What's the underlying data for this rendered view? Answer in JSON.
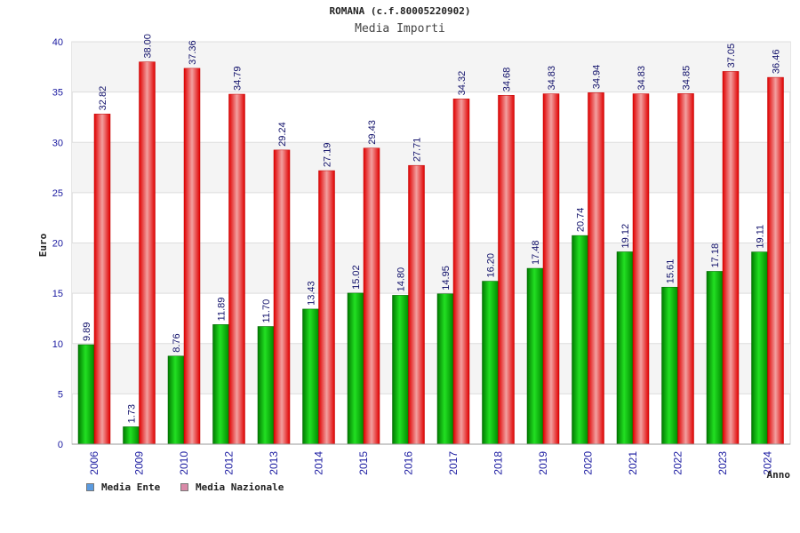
{
  "header": {
    "title": "ROMANA (c.f.80005220902)",
    "subtitle": "Media Importi"
  },
  "legend": {
    "items": [
      {
        "label": "Media Ente",
        "color": "#5b9be0"
      },
      {
        "label": "Media Nazionale",
        "color": "#d98aa8"
      }
    ]
  },
  "chart_data": {
    "type": "bar",
    "title": "ROMANA (c.f.80005220902)",
    "subtitle": "Media Importi",
    "xlabel": "Anno",
    "ylabel": "Euro",
    "ylim": [
      0,
      40
    ],
    "yticks": [
      0,
      5,
      10,
      15,
      20,
      25,
      30,
      35,
      40
    ],
    "grid": true,
    "legend_position": "bottom-left",
    "categories": [
      "2006",
      "2009",
      "2010",
      "2012",
      "2013",
      "2014",
      "2015",
      "2016",
      "2017",
      "2018",
      "2019",
      "2020",
      "2021",
      "2022",
      "2023",
      "2024"
    ],
    "series": [
      {
        "name": "Media Ente",
        "color": "#00b000",
        "values": [
          9.89,
          1.73,
          8.76,
          11.89,
          11.7,
          13.43,
          15.02,
          14.8,
          14.95,
          16.2,
          17.48,
          20.74,
          19.12,
          15.61,
          17.18,
          19.11
        ],
        "labels": [
          "9.89",
          "1.73",
          "8.76",
          "11.89",
          "11.70",
          "13.43",
          "15.02",
          "14.80",
          "14.95",
          "16.20",
          "17.48",
          "20.74",
          "19.12",
          "15.61",
          "17.18",
          "19.11"
        ]
      },
      {
        "name": "Media Nazionale",
        "color": "#ee1111",
        "values": [
          32.82,
          38.0,
          37.36,
          34.79,
          29.24,
          27.19,
          29.43,
          27.71,
          34.32,
          34.68,
          34.83,
          34.94,
          34.83,
          34.85,
          37.05,
          36.46
        ],
        "labels": [
          "32.82",
          "38.00",
          "37.36",
          "34.79",
          "29.24",
          "27.19",
          "29.43",
          "27.71",
          "34.32",
          "34.68",
          "34.83",
          "34.94",
          "34.83",
          "34.85",
          "37.05",
          "36.46"
        ]
      }
    ]
  }
}
